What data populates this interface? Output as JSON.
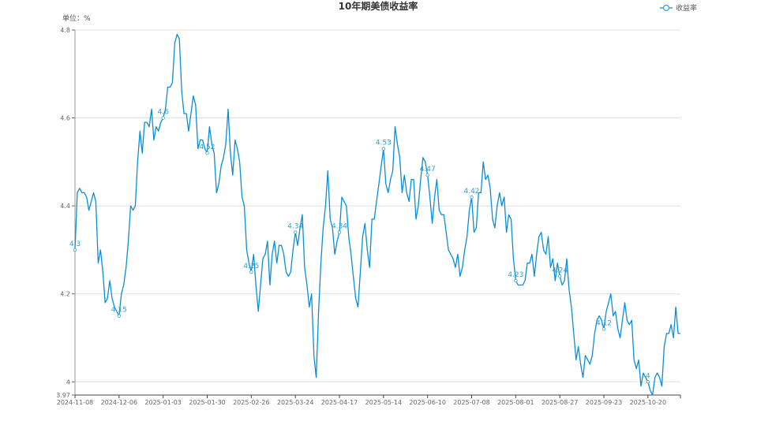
{
  "chart_data": {
    "type": "line",
    "title": "10年期美债收益率",
    "unit_label": "单位：%",
    "legend": {
      "position": "top-right",
      "entries": [
        "收益率"
      ]
    },
    "series_color": "#0a8fd6",
    "grid": true,
    "ylim": [
      3.97,
      4.8
    ],
    "y_ticks": [
      3.97,
      4,
      4.2,
      4.4,
      4.6,
      4.8
    ],
    "x_tick_labels": [
      "2024-11-08",
      "2024-12-06",
      "2025-01-03",
      "2025-01-30",
      "2025-02-26",
      "2025-03-24",
      "2025-04-17",
      "2025-05-14",
      "2025-06-10",
      "2025-07-08",
      "2025-08-01",
      "2025-08-27",
      "2025-09-23",
      "2025-10-20"
    ],
    "x_tick_every": 19,
    "series": [
      {
        "name": "收益率",
        "values": [
          4.3,
          4.43,
          4.44,
          4.43,
          4.43,
          4.42,
          4.39,
          4.41,
          4.43,
          4.41,
          4.27,
          4.3,
          4.25,
          4.18,
          4.19,
          4.23,
          4.19,
          4.17,
          4.16,
          4.15,
          4.2,
          4.22,
          4.26,
          4.32,
          4.4,
          4.39,
          4.4,
          4.5,
          4.57,
          4.52,
          4.59,
          4.59,
          4.58,
          4.62,
          4.55,
          4.58,
          4.57,
          4.59,
          4.6,
          4.62,
          4.67,
          4.67,
          4.68,
          4.77,
          4.79,
          4.78,
          4.66,
          4.61,
          4.61,
          4.57,
          4.61,
          4.65,
          4.63,
          4.53,
          4.55,
          4.55,
          4.53,
          4.52,
          4.58,
          4.54,
          4.52,
          4.43,
          4.45,
          4.49,
          4.51,
          4.54,
          4.62,
          4.52,
          4.47,
          4.55,
          4.53,
          4.5,
          4.42,
          4.4,
          4.3,
          4.27,
          4.25,
          4.29,
          4.22,
          4.16,
          4.22,
          4.28,
          4.29,
          4.32,
          4.22,
          4.29,
          4.32,
          4.27,
          4.31,
          4.31,
          4.29,
          4.25,
          4.24,
          4.25,
          4.3,
          4.34,
          4.31,
          4.35,
          4.38,
          4.26,
          4.22,
          4.17,
          4.2,
          4.06,
          4.01,
          4.16,
          4.27,
          4.35,
          4.4,
          4.48,
          4.37,
          4.35,
          4.29,
          4.32,
          4.34,
          4.42,
          4.41,
          4.4,
          4.33,
          4.29,
          4.24,
          4.19,
          4.17,
          4.25,
          4.33,
          4.36,
          4.3,
          4.26,
          4.37,
          4.37,
          4.41,
          4.45,
          4.49,
          4.53,
          4.45,
          4.43,
          4.46,
          4.48,
          4.58,
          4.54,
          4.51,
          4.43,
          4.47,
          4.43,
          4.41,
          4.46,
          4.46,
          4.37,
          4.4,
          4.46,
          4.51,
          4.5,
          4.47,
          4.42,
          4.36,
          4.42,
          4.46,
          4.39,
          4.38,
          4.38,
          4.34,
          4.3,
          4.29,
          4.28,
          4.26,
          4.29,
          4.24,
          4.26,
          4.3,
          4.33,
          4.39,
          4.42,
          4.34,
          4.35,
          4.43,
          4.43,
          4.5,
          4.46,
          4.47,
          4.44,
          4.37,
          4.35,
          4.4,
          4.43,
          4.4,
          4.42,
          4.34,
          4.38,
          4.37,
          4.28,
          4.23,
          4.22,
          4.22,
          4.22,
          4.23,
          4.27,
          4.27,
          4.29,
          4.24,
          4.29,
          4.33,
          4.34,
          4.3,
          4.29,
          4.33,
          4.26,
          4.28,
          4.23,
          4.27,
          4.24,
          4.22,
          4.23,
          4.28,
          4.21,
          4.17,
          4.11,
          4.05,
          4.08,
          4.04,
          4.01,
          4.06,
          4.05,
          4.04,
          4.06,
          4.11,
          4.14,
          4.15,
          4.14,
          4.12,
          4.16,
          4.18,
          4.2,
          4.15,
          4.16,
          4.12,
          4.1,
          4.14,
          4.18,
          4.14,
          4.13,
          4.14,
          4.05,
          4.03,
          4.05,
          3.99,
          4.02,
          4.01,
          4.0,
          3.98,
          3.97,
          4.01,
          4.02,
          4.01,
          3.99,
          4.08,
          4.11,
          4.11,
          4.13,
          4.1,
          4.17,
          4.11,
          4.11
        ]
      }
    ]
  }
}
